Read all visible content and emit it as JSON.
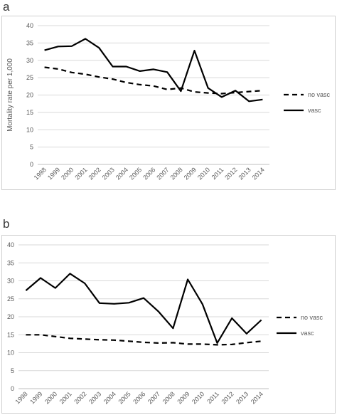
{
  "panels": {
    "a": {
      "letter": "a"
    },
    "b": {
      "letter": "b"
    }
  },
  "colors": {
    "line": "#000000",
    "grid": "#d9d9d9",
    "axis": "#bfbfbf",
    "text": "#595959"
  },
  "chart_data": [
    {
      "type": "line",
      "title": "",
      "xlabel": "",
      "ylabel": "Mortality rate per 1,000",
      "categories": [
        "1998",
        "1999",
        "2000",
        "2001",
        "2002",
        "2003",
        "2004",
        "2005",
        "2006",
        "2007",
        "2008",
        "2009",
        "2010",
        "2011",
        "2012",
        "2013",
        "2014"
      ],
      "ylim": [
        0,
        40
      ],
      "yticks": [
        0,
        5,
        10,
        15,
        20,
        25,
        30,
        35,
        40
      ],
      "grid": "horizontal",
      "legend_position": "right",
      "series": [
        {
          "name": "no vasc",
          "style": "dashed",
          "values": [
            28.0,
            27.5,
            26.5,
            26.0,
            25.2,
            24.6,
            23.6,
            23.0,
            22.6,
            21.6,
            22.0,
            20.9,
            20.6,
            20.4,
            20.7,
            21.0,
            21.3
          ]
        },
        {
          "name": "vasc",
          "style": "solid",
          "values": [
            32.9,
            34.0,
            34.1,
            36.2,
            33.6,
            28.2,
            28.2,
            26.9,
            27.4,
            26.6,
            21.1,
            32.8,
            22.0,
            19.4,
            21.3,
            18.2,
            18.7
          ]
        }
      ]
    },
    {
      "type": "line",
      "title": "",
      "xlabel": "",
      "ylabel": "",
      "categories": [
        "1998",
        "1999",
        "2000",
        "2001",
        "2002",
        "2003",
        "2004",
        "2005",
        "2006",
        "2007",
        "2008",
        "2009",
        "2010",
        "2011",
        "2012",
        "2013",
        "2014"
      ],
      "ylim": [
        0,
        40
      ],
      "yticks": [
        0,
        5,
        10,
        15,
        20,
        25,
        30,
        35,
        40
      ],
      "grid": "horizontal",
      "legend_position": "right",
      "series": [
        {
          "name": "no vasc",
          "style": "dashed",
          "values": [
            15.0,
            15.0,
            14.5,
            14.0,
            13.8,
            13.6,
            13.5,
            13.2,
            12.9,
            12.7,
            12.8,
            12.4,
            12.4,
            12.2,
            12.3,
            12.8,
            13.2
          ]
        },
        {
          "name": "vasc",
          "style": "solid",
          "values": [
            27.3,
            30.8,
            28.0,
            32.0,
            29.3,
            23.8,
            23.6,
            23.9,
            25.2,
            21.5,
            16.8,
            30.4,
            23.5,
            12.7,
            19.6,
            15.3,
            19.1
          ]
        }
      ]
    }
  ]
}
